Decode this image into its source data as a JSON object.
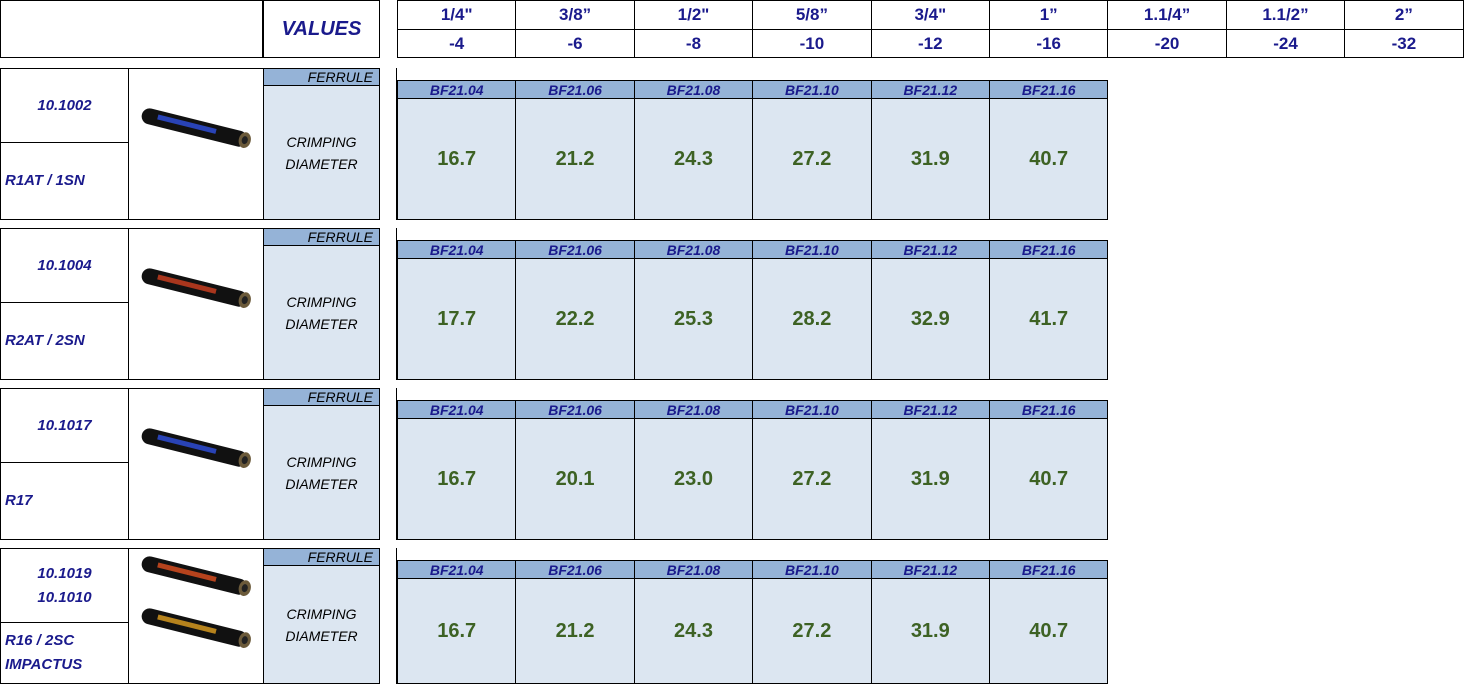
{
  "header": {
    "values_label": "VALUES",
    "sizes": [
      {
        "inch": "1/4\"",
        "dash": "-4"
      },
      {
        "inch": "3/8”",
        "dash": "-6"
      },
      {
        "inch": "1/2\"",
        "dash": "-8"
      },
      {
        "inch": "5/8”",
        "dash": "-10"
      },
      {
        "inch": "3/4\"",
        "dash": "-12"
      },
      {
        "inch": "1”",
        "dash": "-16"
      },
      {
        "inch": "1.1/4”",
        "dash": "-20"
      },
      {
        "inch": "1.1/2”",
        "dash": "-24"
      },
      {
        "inch": "2”",
        "dash": "-32"
      }
    ]
  },
  "groups": [
    {
      "codes": [
        "10.1002"
      ],
      "types": [
        "R1AT / 1SN"
      ],
      "ferrule_label": "FERRULE",
      "crimping_label": "CRIMPING DIAMETER",
      "ferrules": [
        "BF21.04",
        "BF21.06",
        "BF21.08",
        "BF21.10",
        "BF21.12",
        "BF21.16"
      ],
      "diameters": [
        "16.7",
        "21.2",
        "24.3",
        "27.2",
        "31.9",
        "40.7"
      ]
    },
    {
      "codes": [
        "10.1004"
      ],
      "types": [
        "R2AT / 2SN"
      ],
      "ferrule_label": "FERRULE",
      "crimping_label": "CRIMPING DIAMETER",
      "ferrules": [
        "BF21.04",
        "BF21.06",
        "BF21.08",
        "BF21.10",
        "BF21.12",
        "BF21.16"
      ],
      "diameters": [
        "17.7",
        "22.2",
        "25.3",
        "28.2",
        "32.9",
        "41.7"
      ]
    },
    {
      "codes": [
        "10.1017"
      ],
      "types": [
        "R17"
      ],
      "ferrule_label": "FERRULE",
      "crimping_label": "CRIMPING DIAMETER",
      "ferrules": [
        "BF21.04",
        "BF21.06",
        "BF21.08",
        "BF21.10",
        "BF21.12",
        "BF21.16"
      ],
      "diameters": [
        "16.7",
        "20.1",
        "23.0",
        "27.2",
        "31.9",
        "40.7"
      ]
    },
    {
      "codes": [
        "10.1019",
        "10.1010"
      ],
      "types": [
        "R16 / 2SC",
        "IMPACTUS"
      ],
      "ferrule_label": "FERRULE",
      "crimping_label": "CRIMPING DIAMETER",
      "ferrules": [
        "BF21.04",
        "BF21.06",
        "BF21.08",
        "BF21.10",
        "BF21.12",
        "BF21.16"
      ],
      "diameters": [
        "16.7",
        "21.2",
        "24.3",
        "27.2",
        "31.9",
        "40.7"
      ]
    }
  ]
}
